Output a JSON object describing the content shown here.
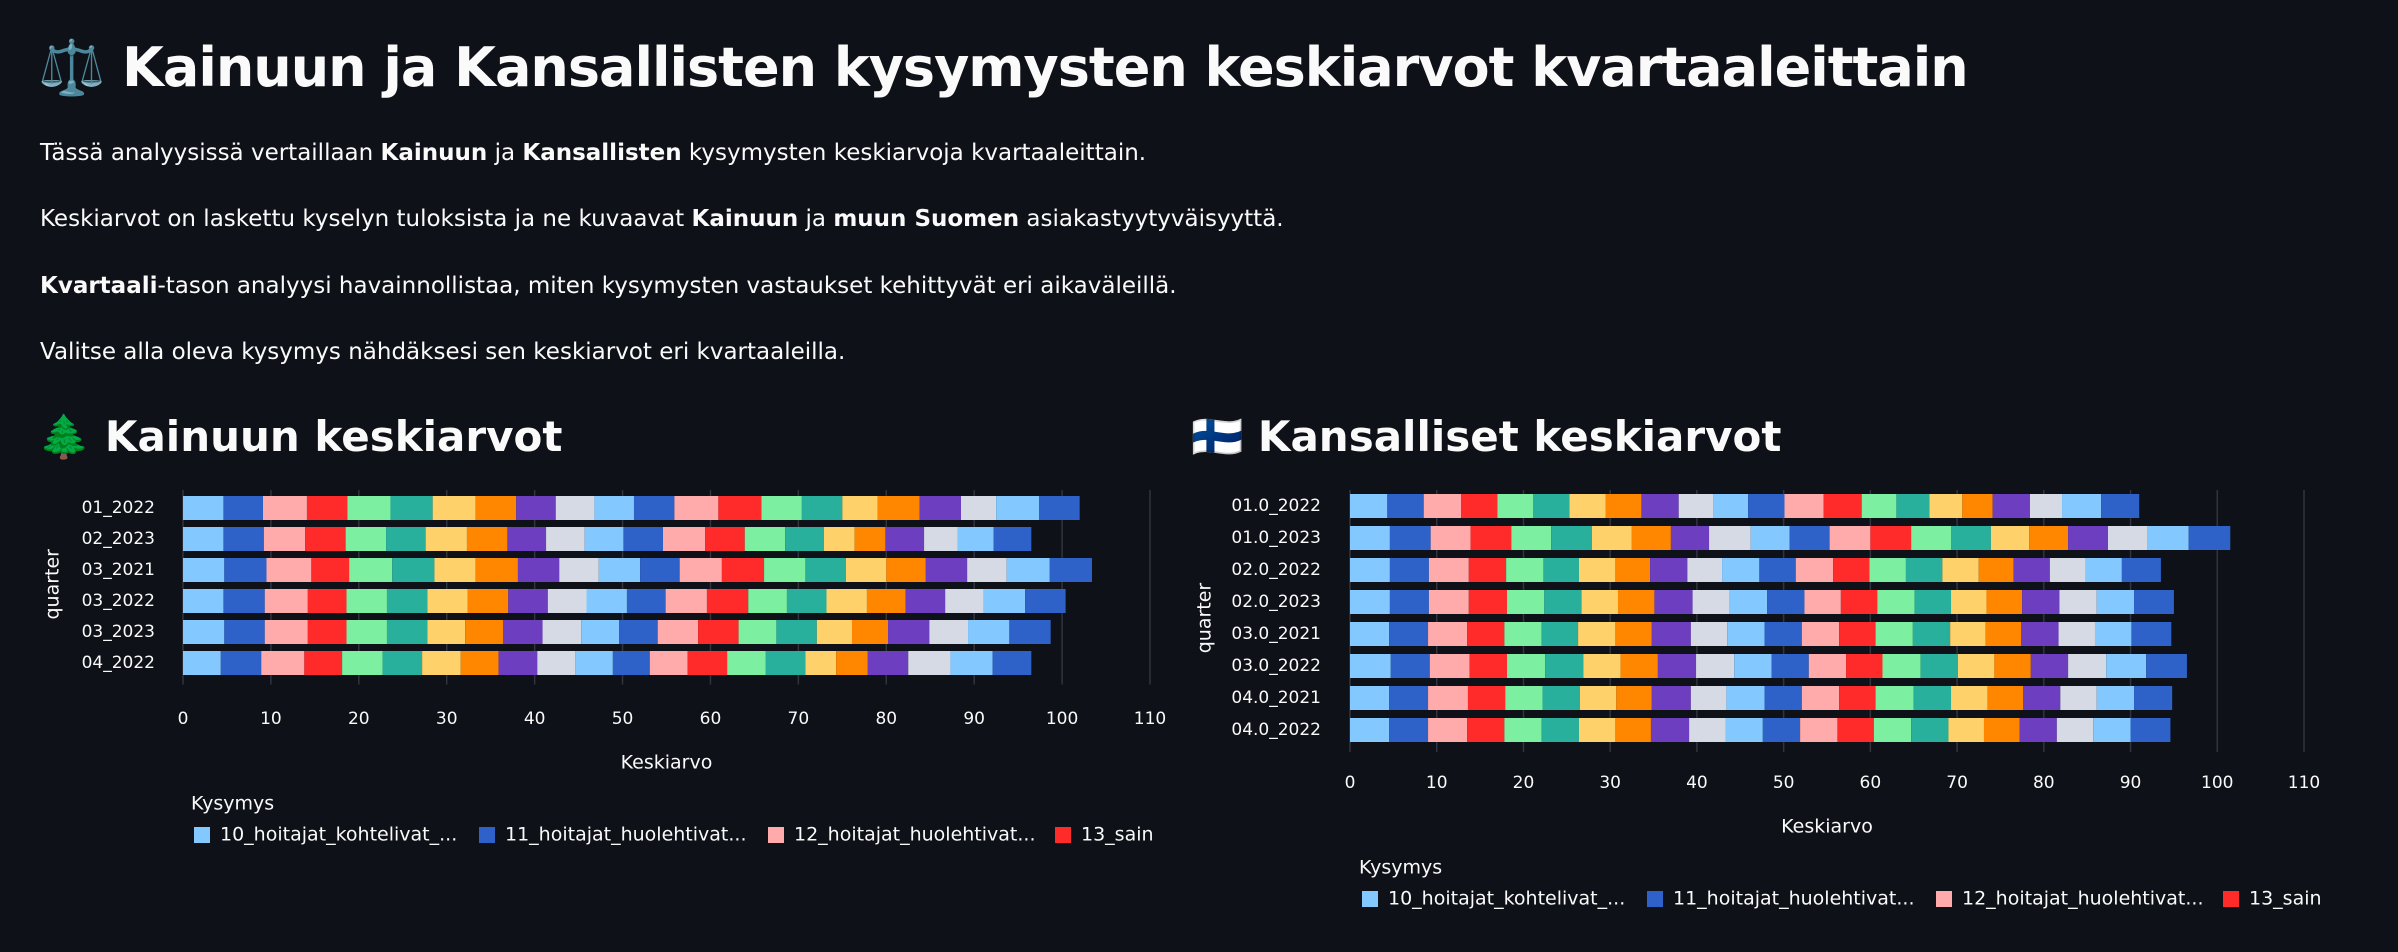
{
  "header": {
    "title": "⚖️ Kainuun ja Kansallisten kysymysten keskiarvot kvartaaleittain",
    "paragraphs": [
      [
        "Tässä analyysissä vertaillaan ",
        "Kainuun",
        " ja ",
        "Kansallisten",
        " kysymysten keskiarvoja kvartaaleittain."
      ],
      [
        "Keskiarvot on laskettu kyselyn tuloksista ja ne kuvaavat ",
        "Kainuun",
        " ja ",
        "muun Suomen",
        " asiakastyytyväisyyttä."
      ],
      [
        "Kvartaali",
        "-tason analyysi havainnollistaa, miten kysymysten vastaukset kehittyvät eri aikaväleillä."
      ],
      [
        "Valitse alla oleva kysymys nähdäksesi sen keskiarvot eri kvartaaleilla."
      ]
    ]
  },
  "chart_data": [
    {
      "type": "stacked-bar-horizontal",
      "title": "🌲 Kainuun keskiarvot",
      "xlabel": "Keskiarvo",
      "ylabel": "quarter",
      "legend_title": "Kysymys",
      "grid": true,
      "categories": [
        "01_2022",
        "02_2023",
        "03_2021",
        "03_2022",
        "03_2023",
        "04_2022"
      ],
      "xlim": [
        0,
        110
      ],
      "xticks": [
        0,
        10,
        20,
        30,
        40,
        50,
        60,
        70,
        80,
        90,
        100,
        110
      ],
      "series": [
        {
          "name": "10_hoitajat_kohtelivat_...",
          "color": "#83c9ff",
          "values": [
            4.6,
            4.6,
            4.7,
            4.6,
            4.7,
            4.3
          ]
        },
        {
          "name": "11_hoitajat_huolehtivat...",
          "color": "#2e62c9",
          "values": [
            4.5,
            4.6,
            4.8,
            4.7,
            4.6,
            4.6
          ]
        },
        {
          "name": "12_hoitajat_huolehtivat...",
          "color": "#ffabab",
          "values": [
            5.0,
            4.7,
            5.1,
            4.9,
            4.9,
            4.9
          ]
        },
        {
          "name": "13_sain",
          "color": "#ff2b2b",
          "values": [
            4.6,
            4.6,
            4.3,
            4.4,
            4.4,
            4.3
          ]
        },
        {
          "color": "#7defa1",
          "values": [
            4.9,
            4.6,
            4.9,
            4.6,
            4.6,
            4.6
          ]
        },
        {
          "color": "#29b09d",
          "values": [
            4.8,
            4.5,
            4.8,
            4.6,
            4.6,
            4.5
          ]
        },
        {
          "color": "#ffd16a",
          "values": [
            4.9,
            4.7,
            4.7,
            4.6,
            4.3,
            4.4
          ]
        },
        {
          "color": "#ff8700",
          "values": [
            4.6,
            4.6,
            4.8,
            4.6,
            4.3,
            4.3
          ]
        },
        {
          "color": "#6d3fc0",
          "values": [
            4.5,
            4.4,
            4.7,
            4.5,
            4.5,
            4.4
          ]
        },
        {
          "color": "#d5dae5",
          "values": [
            4.4,
            4.4,
            4.5,
            4.4,
            4.4,
            4.3
          ]
        },
        {
          "color": "#83c9ff",
          "values": [
            4.5,
            4.4,
            4.7,
            4.6,
            4.3,
            4.3
          ]
        },
        {
          "color": "#2e62c9",
          "values": [
            4.6,
            4.5,
            4.5,
            4.4,
            4.4,
            4.2
          ]
        },
        {
          "color": "#ffabab",
          "values": [
            5.0,
            4.8,
            4.8,
            4.7,
            4.6,
            4.3
          ]
        },
        {
          "color": "#ff2b2b",
          "values": [
            4.9,
            4.5,
            4.8,
            4.7,
            4.6,
            4.5
          ]
        },
        {
          "color": "#7defa1",
          "values": [
            4.6,
            4.6,
            4.7,
            4.4,
            4.3,
            4.4
          ]
        },
        {
          "color": "#29b09d",
          "values": [
            4.6,
            4.4,
            4.6,
            4.5,
            4.6,
            4.5
          ]
        },
        {
          "color": "#ffd16a",
          "values": [
            4.0,
            3.5,
            4.6,
            4.6,
            4.0,
            3.5
          ]
        },
        {
          "color": "#ff8700",
          "values": [
            4.8,
            3.5,
            4.5,
            4.4,
            4.1,
            3.6
          ]
        },
        {
          "color": "#6d3fc0",
          "values": [
            4.7,
            4.4,
            4.7,
            4.5,
            4.7,
            4.6
          ]
        },
        {
          "color": "#d5dae5",
          "values": [
            4.0,
            3.8,
            4.5,
            4.4,
            4.4,
            4.8
          ]
        },
        {
          "color": "#83c9ff",
          "values": [
            4.9,
            4.1,
            4.9,
            4.7,
            4.7,
            4.8
          ]
        },
        {
          "color": "#2e62c9",
          "values": [
            4.6,
            4.3,
            4.8,
            4.6,
            4.7,
            4.4
          ]
        }
      ]
    },
    {
      "type": "stacked-bar-horizontal",
      "title": "🇫🇮 Kansalliset keskiarvot",
      "xlabel": "Keskiarvo",
      "ylabel": "quarter",
      "legend_title": "Kysymys",
      "grid": true,
      "categories": [
        "01.0_2022",
        "01.0_2023",
        "02.0_2022",
        "02.0_2023",
        "03.0_2021",
        "03.0_2022",
        "04.0_2021",
        "04.0_2022"
      ],
      "xlim": [
        0,
        110
      ],
      "xticks": [
        0,
        10,
        20,
        30,
        40,
        50,
        60,
        70,
        80,
        90,
        100,
        110
      ],
      "series": [
        {
          "name": "10_hoitajat_kohtelivat_...",
          "color": "#83c9ff",
          "values": [
            4.3,
            4.6,
            4.6,
            4.6,
            4.5,
            4.7,
            4.5,
            4.5
          ]
        },
        {
          "name": "11_hoitajat_huolehtivat...",
          "color": "#2e62c9",
          "values": [
            4.2,
            4.7,
            4.5,
            4.5,
            4.5,
            4.5,
            4.5,
            4.5
          ]
        },
        {
          "name": "12_hoitajat_huolehtivat...",
          "color": "#ffabab",
          "values": [
            4.3,
            4.6,
            4.6,
            4.6,
            4.5,
            4.6,
            4.6,
            4.5
          ]
        },
        {
          "name": "13_sain",
          "color": "#ff2b2b",
          "values": [
            4.2,
            4.7,
            4.3,
            4.4,
            4.3,
            4.3,
            4.3,
            4.3
          ]
        },
        {
          "color": "#7defa1",
          "values": [
            4.1,
            4.6,
            4.3,
            4.3,
            4.3,
            4.4,
            4.3,
            4.3
          ]
        },
        {
          "color": "#29b09d",
          "values": [
            4.2,
            4.7,
            4.1,
            4.3,
            4.2,
            4.4,
            4.3,
            4.3
          ]
        },
        {
          "color": "#ffd16a",
          "values": [
            4.2,
            4.6,
            4.2,
            4.2,
            4.3,
            4.3,
            4.2,
            4.2
          ]
        },
        {
          "color": "#ff8700",
          "values": [
            4.1,
            4.5,
            4.0,
            4.2,
            4.2,
            4.3,
            4.1,
            4.1
          ]
        },
        {
          "color": "#6d3fc0",
          "values": [
            4.3,
            4.4,
            4.3,
            4.4,
            4.5,
            4.4,
            4.5,
            4.4
          ]
        },
        {
          "color": "#d5dae5",
          "values": [
            4.0,
            4.8,
            4.0,
            4.2,
            4.2,
            4.4,
            4.1,
            4.2
          ]
        },
        {
          "color": "#83c9ff",
          "values": [
            4.0,
            4.5,
            4.3,
            4.4,
            4.3,
            4.3,
            4.4,
            4.3
          ]
        },
        {
          "color": "#2e62c9",
          "values": [
            4.2,
            4.6,
            4.2,
            4.3,
            4.3,
            4.3,
            4.3,
            4.3
          ]
        },
        {
          "color": "#ffabab",
          "values": [
            4.5,
            4.7,
            4.3,
            4.2,
            4.3,
            4.3,
            4.3,
            4.3
          ]
        },
        {
          "color": "#ff2b2b",
          "values": [
            4.4,
            4.7,
            4.2,
            4.2,
            4.2,
            4.2,
            4.2,
            4.2
          ]
        },
        {
          "color": "#7defa1",
          "values": [
            4.0,
            4.6,
            4.2,
            4.3,
            4.3,
            4.4,
            4.4,
            4.3
          ]
        },
        {
          "color": "#29b09d",
          "values": [
            3.8,
            4.6,
            4.2,
            4.2,
            4.3,
            4.3,
            4.3,
            4.3
          ]
        },
        {
          "color": "#ffd16a",
          "values": [
            3.8,
            4.4,
            4.2,
            4.1,
            4.1,
            4.2,
            4.2,
            4.1
          ]
        },
        {
          "color": "#ff8700",
          "values": [
            3.5,
            4.5,
            4.0,
            4.1,
            4.1,
            4.2,
            4.1,
            4.1
          ]
        },
        {
          "color": "#6d3fc0",
          "values": [
            4.3,
            4.6,
            4.2,
            4.3,
            4.3,
            4.3,
            4.3,
            4.3
          ]
        },
        {
          "color": "#d5dae5",
          "values": [
            3.7,
            4.5,
            4.1,
            4.3,
            4.2,
            4.4,
            4.2,
            4.2
          ]
        },
        {
          "color": "#83c9ff",
          "values": [
            4.5,
            4.8,
            4.2,
            4.3,
            4.2,
            4.6,
            4.3,
            4.3
          ]
        },
        {
          "color": "#2e62c9",
          "values": [
            4.4,
            4.8,
            4.5,
            4.6,
            4.6,
            4.7,
            4.4,
            4.6
          ]
        }
      ]
    }
  ]
}
